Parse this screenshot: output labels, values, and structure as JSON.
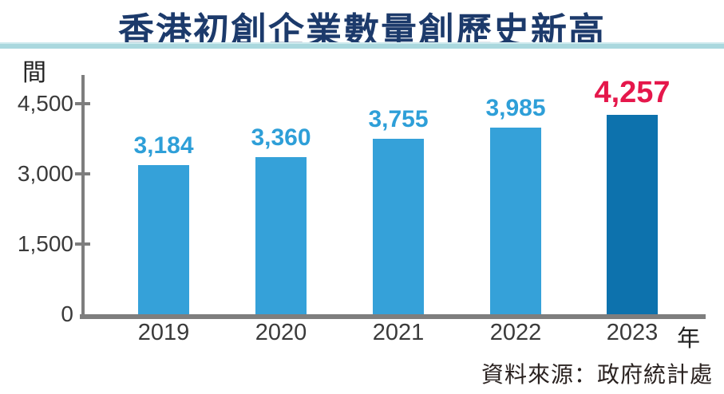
{
  "title": "香港初創企業數量創歷史新高",
  "source": "資料來源：政府統計處",
  "chart_data": {
    "type": "bar",
    "categories": [
      "2019",
      "2020",
      "2021",
      "2022",
      "2023"
    ],
    "values": [
      3184,
      3360,
      3755,
      3985,
      4257
    ],
    "value_labels": [
      "3,184",
      "3,360",
      "3,755",
      "3,985",
      "4,257"
    ],
    "highlight_index": 4,
    "y_unit_label": "間",
    "x_unit_label": "年",
    "ylim": [
      0,
      4500
    ],
    "yticks": [
      0,
      1500,
      3000,
      4500
    ],
    "ytick_labels": [
      "0",
      "1,500",
      "3,000",
      "4,500"
    ],
    "grid": false,
    "legend": null,
    "bar_color": "#35A1D9",
    "highlight_bar_color": "#0D72AD",
    "value_label_color": "#2E9FD8",
    "highlight_value_label_color": "#E5174B"
  },
  "colors": {
    "title": "#1C3A6B",
    "divider": "#AAD8DE",
    "axis": "#7E7E7E",
    "tick_text": "#3A3A3A"
  }
}
